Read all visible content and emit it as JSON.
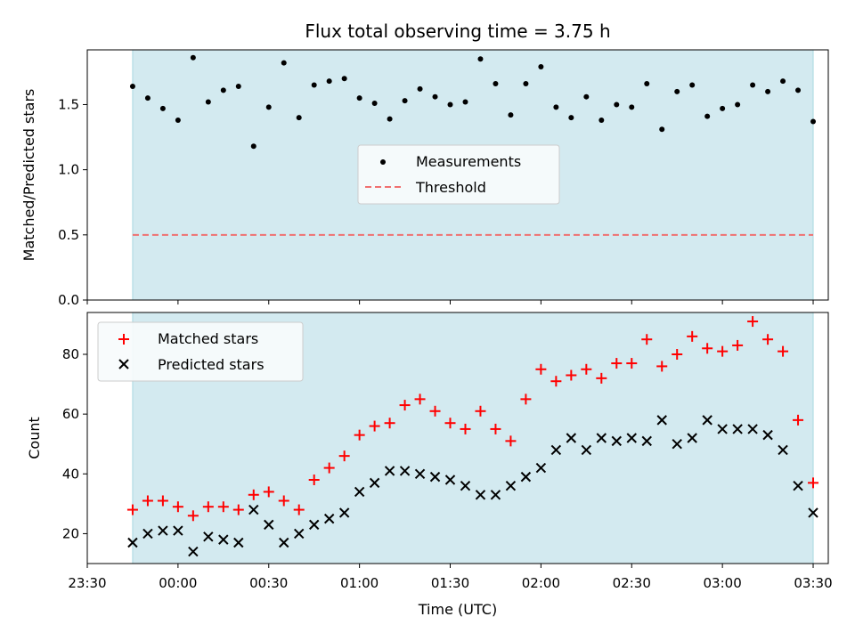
{
  "chart_data": [
    {
      "panel": "top",
      "type": "scatter",
      "title": "Flux total observing time = 3.75 h",
      "xlabel": "",
      "ylabel": "Matched/Predicted stars",
      "ylim": [
        0,
        1.92
      ],
      "yticks": [
        0.0,
        0.5,
        1.0,
        1.5
      ],
      "ytick_labels": [
        "0.0",
        "0.5",
        "1.0",
        "1.5"
      ],
      "shaded_range": [
        "23:45",
        "03:30"
      ],
      "shade_color": "#d3eaf0",
      "legend": {
        "placement": "center",
        "entries": [
          "Measurements",
          "Threshold"
        ]
      },
      "series": [
        {
          "name": "Measurements",
          "marker": "dot",
          "color": "#000000",
          "x": [
            "23:45",
            "23:50",
            "23:55",
            "00:00",
            "00:05",
            "00:10",
            "00:15",
            "00:20",
            "00:25",
            "00:30",
            "00:35",
            "00:40",
            "00:45",
            "00:50",
            "00:55",
            "01:00",
            "01:05",
            "01:10",
            "01:15",
            "01:20",
            "01:25",
            "01:30",
            "01:35",
            "01:40",
            "01:45",
            "01:50",
            "01:55",
            "02:00",
            "02:05",
            "02:10",
            "02:15",
            "02:20",
            "02:25",
            "02:30",
            "02:35",
            "02:40",
            "02:45",
            "02:50",
            "02:55",
            "03:00",
            "03:05",
            "03:10",
            "03:15",
            "03:20",
            "03:25",
            "03:30"
          ],
          "y": [
            1.64,
            1.55,
            1.47,
            1.38,
            1.86,
            1.52,
            1.61,
            1.64,
            1.18,
            1.48,
            1.82,
            1.4,
            1.65,
            1.68,
            1.7,
            1.55,
            1.51,
            1.39,
            1.53,
            1.62,
            1.56,
            1.5,
            1.52,
            1.85,
            1.66,
            1.42,
            1.66,
            1.79,
            1.48,
            1.4,
            1.56,
            1.38,
            1.5,
            1.48,
            1.66,
            1.31,
            1.6,
            1.65,
            1.41,
            1.47,
            1.5,
            1.65,
            1.6,
            1.68,
            1.61,
            1.37
          ]
        },
        {
          "name": "Threshold",
          "marker": "dashed-line",
          "color": "#f07070",
          "x": [
            "23:45",
            "03:30"
          ],
          "y": [
            0.5,
            0.5
          ]
        }
      ]
    },
    {
      "panel": "bottom",
      "type": "scatter",
      "title": "",
      "xlabel": "Time (UTC)",
      "ylabel": "Count",
      "ylim": [
        10,
        94
      ],
      "yticks": [
        20,
        40,
        60,
        80
      ],
      "ytick_labels": [
        "20",
        "40",
        "60",
        "80"
      ],
      "xticks": [
        "23:30",
        "00:00",
        "00:30",
        "01:00",
        "01:30",
        "02:00",
        "02:30",
        "03:00",
        "03:30"
      ],
      "xlim": [
        "23:30",
        "03:35"
      ],
      "shaded_range": [
        "23:45",
        "03:30"
      ],
      "shade_color": "#d3eaf0",
      "legend": {
        "placement": "top-left",
        "entries": [
          "Matched stars",
          "Predicted stars"
        ]
      },
      "series": [
        {
          "name": "Matched stars",
          "marker": "plus",
          "color": "#ff0000",
          "x": [
            "23:45",
            "23:50",
            "23:55",
            "00:00",
            "00:05",
            "00:10",
            "00:15",
            "00:20",
            "00:25",
            "00:30",
            "00:35",
            "00:40",
            "00:45",
            "00:50",
            "00:55",
            "01:00",
            "01:05",
            "01:10",
            "01:15",
            "01:20",
            "01:25",
            "01:30",
            "01:35",
            "01:40",
            "01:45",
            "01:50",
            "01:55",
            "02:00",
            "02:05",
            "02:10",
            "02:15",
            "02:20",
            "02:25",
            "02:30",
            "02:35",
            "02:40",
            "02:45",
            "02:50",
            "02:55",
            "03:00",
            "03:05",
            "03:10",
            "03:15",
            "03:20",
            "03:25",
            "03:30"
          ],
          "y": [
            28,
            31,
            31,
            29,
            26,
            29,
            29,
            28,
            33,
            34,
            31,
            28,
            38,
            42,
            46,
            53,
            56,
            57,
            63,
            65,
            61,
            57,
            55,
            61,
            55,
            51,
            65,
            75,
            71,
            73,
            75,
            72,
            77,
            77,
            85,
            76,
            80,
            86,
            82,
            81,
            83,
            91,
            85,
            81,
            58,
            37
          ]
        },
        {
          "name": "Predicted stars",
          "marker": "x",
          "color": "#000000",
          "x": [
            "23:45",
            "23:50",
            "23:55",
            "00:00",
            "00:05",
            "00:10",
            "00:15",
            "00:20",
            "00:25",
            "00:30",
            "00:35",
            "00:40",
            "00:45",
            "00:50",
            "00:55",
            "01:00",
            "01:05",
            "01:10",
            "01:15",
            "01:20",
            "01:25",
            "01:30",
            "01:35",
            "01:40",
            "01:45",
            "01:50",
            "01:55",
            "02:00",
            "02:05",
            "02:10",
            "02:15",
            "02:20",
            "02:25",
            "02:30",
            "02:35",
            "02:40",
            "02:45",
            "02:50",
            "02:55",
            "03:00",
            "03:05",
            "03:10",
            "03:15",
            "03:20",
            "03:25",
            "03:30"
          ],
          "y": [
            17,
            20,
            21,
            21,
            14,
            19,
            18,
            17,
            28,
            23,
            17,
            20,
            23,
            25,
            27,
            34,
            37,
            41,
            41,
            40,
            39,
            38,
            36,
            33,
            33,
            36,
            39,
            42,
            48,
            52,
            48,
            52,
            51,
            52,
            51,
            58,
            50,
            52,
            58,
            55,
            55,
            55,
            53,
            48,
            36,
            27
          ]
        }
      ]
    }
  ]
}
